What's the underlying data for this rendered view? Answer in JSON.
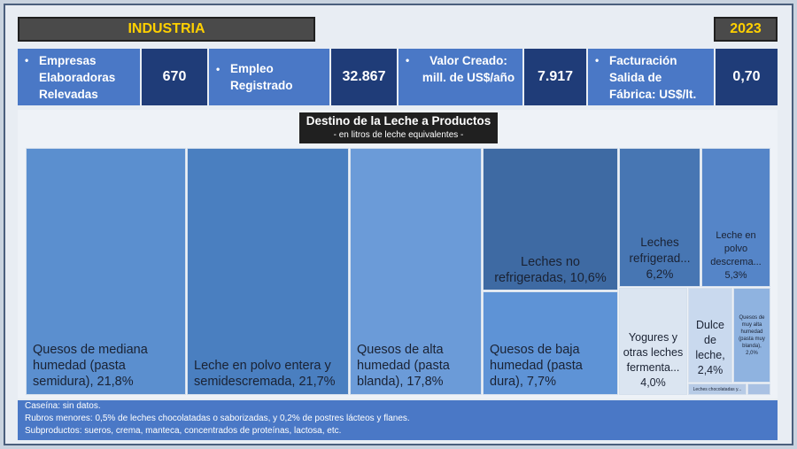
{
  "header": {
    "title": "INDUSTRIA",
    "year": "2023"
  },
  "kpis": [
    {
      "label": "Empresas Elaboradoras Relevadas",
      "value": "670"
    },
    {
      "label": "Empleo Registrado",
      "value": "32.867"
    },
    {
      "label": "Valor Creado: mill. de US$/año",
      "value": "7.917"
    },
    {
      "label": "Facturación Salida de Fábrica: US$/lt.",
      "value": "0,70"
    }
  ],
  "chart": {
    "title": "Destino de la Leche a Productos",
    "subtitle": "- en litros de leche equivalentes -"
  },
  "chart_data": {
    "type": "treemap",
    "items": [
      {
        "label": "Quesos de mediana humedad (pasta semidura), 21,8%",
        "value": 21.8,
        "color": "#5b8fcf"
      },
      {
        "label": "Leche en polvo entera y semidescremada, 21,7%",
        "value": 21.7,
        "color": "#4a7fc0"
      },
      {
        "label": "Quesos de alta humedad (pasta blanda), 17,8%",
        "value": 17.8,
        "color": "#6b9bd8"
      },
      {
        "label": "Leches no refrigeradas, 10,6%",
        "value": 10.6,
        "color": "#3e6aa3"
      },
      {
        "label": "Quesos de baja humedad (pasta dura), 7,7%",
        "value": 7.7,
        "color": "#5e93d6"
      },
      {
        "label": "Leches refrigerad... 6,2%",
        "value": 6.2,
        "color": "#4776b3"
      },
      {
        "label": "Leche en polvo descrema... 5,3%",
        "value": 5.3,
        "color": "#5585c8"
      },
      {
        "label": "Yogures y otras leches fermenta... 4,0%",
        "value": 4.0,
        "color": "#dbe5f1"
      },
      {
        "label": "Dulce de leche, 2,4%",
        "value": 2.4,
        "color": "#c9d9ee"
      },
      {
        "label": "Quesos de muy alta humedad (pasta muy blanda), 2,0%",
        "value": 2.0,
        "color": "#8fb3e0"
      },
      {
        "label": "Leches chocolatadas y...",
        "value": 0.5,
        "color": "#b7cbe6"
      },
      {
        "label": "",
        "value": 0.2,
        "color": "#a9c1e3"
      }
    ]
  },
  "notes": [
    "Caseína: sin datos.",
    "Rubros menores: 0,5% de leches chocolatadas o saborizadas, y 0,2% de postres lácteos y flanes.",
    "Subproductos: sueros, crema, manteca, concentrados de proteínas, lactosa, etc."
  ]
}
